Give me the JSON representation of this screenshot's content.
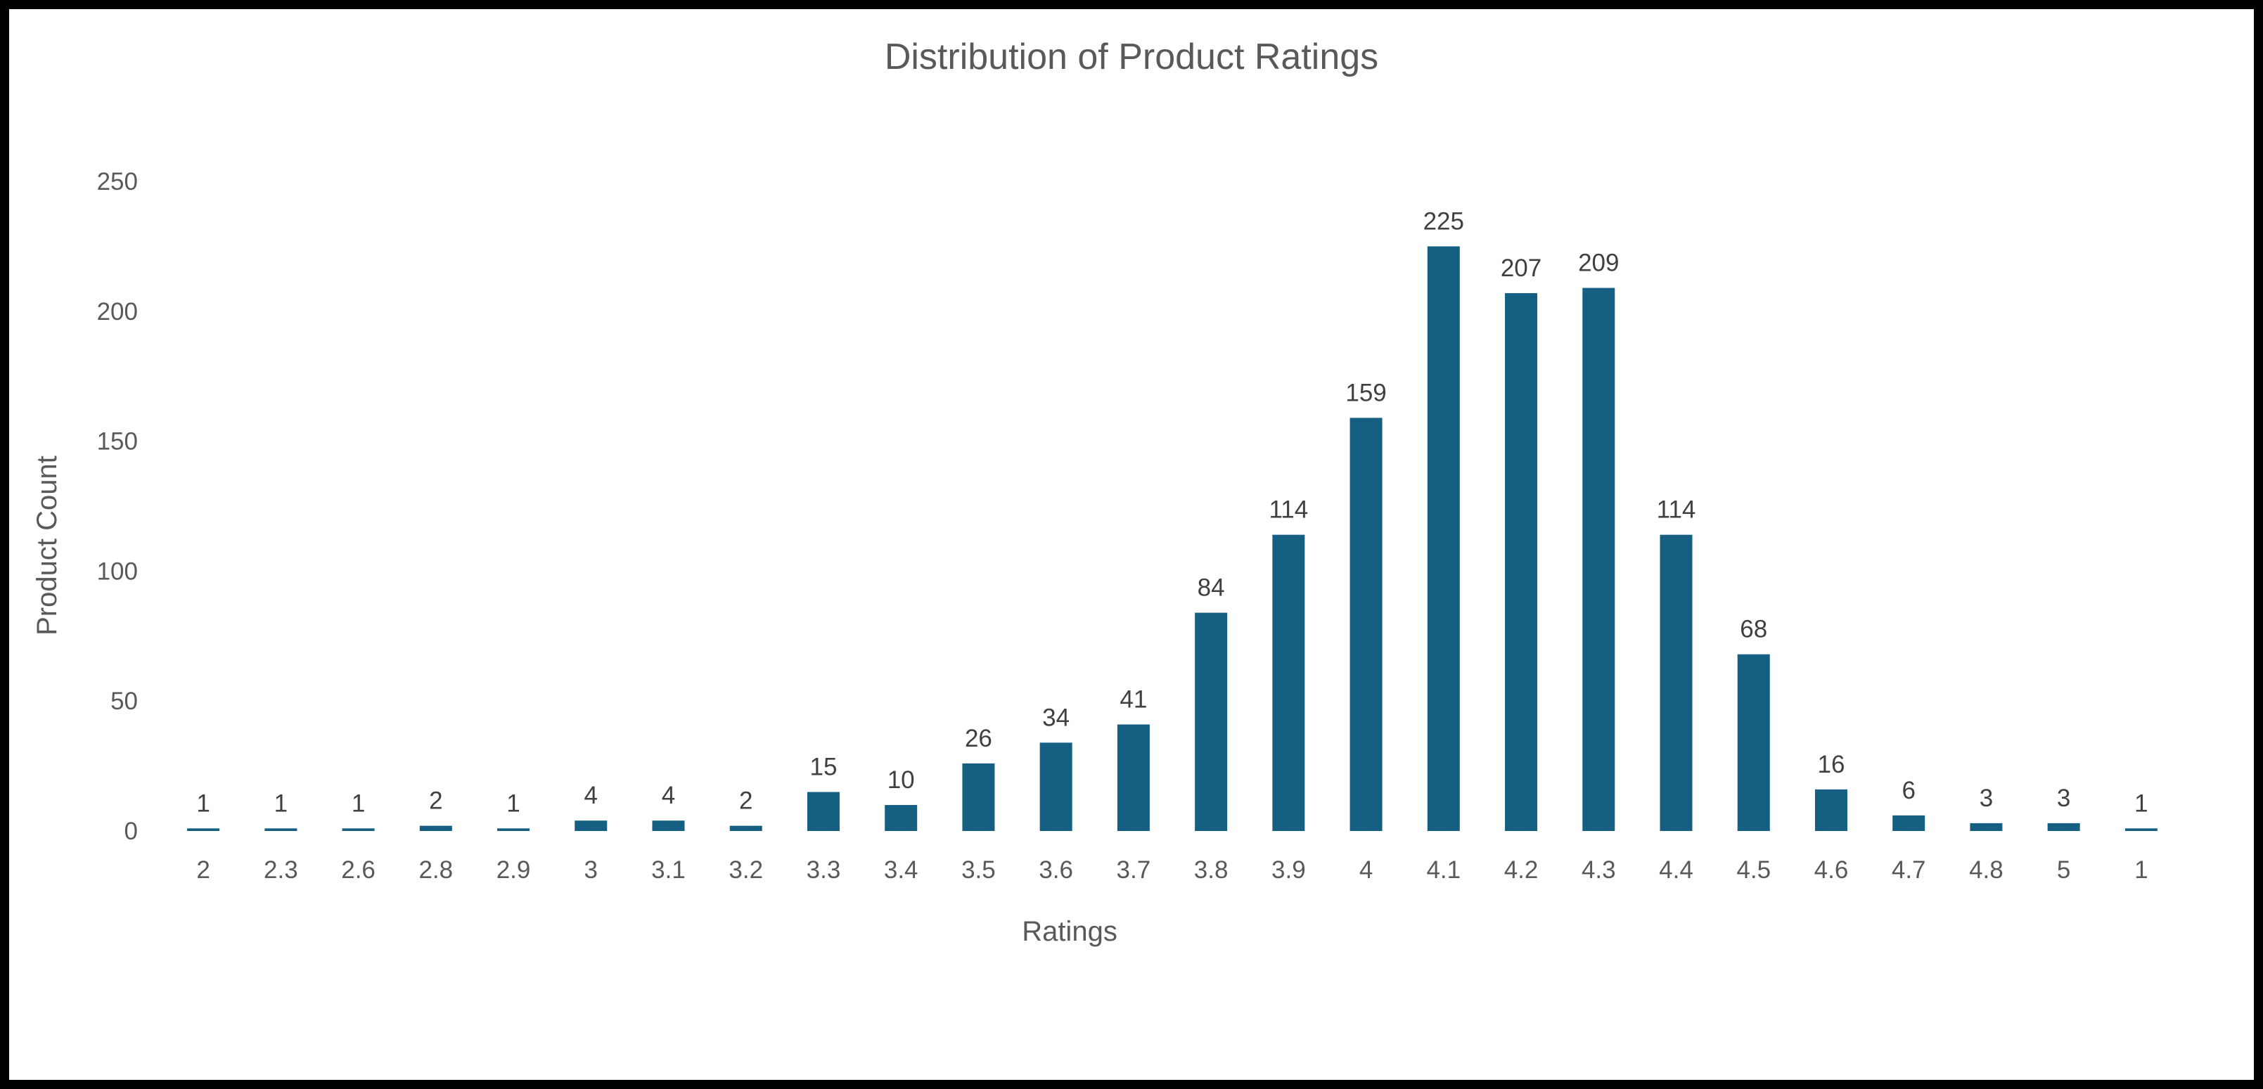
{
  "chart_data": {
    "type": "bar",
    "title": "Distribution of Product Ratings",
    "xlabel": "Ratings",
    "ylabel": "Product Count",
    "categories": [
      "2",
      "2.3",
      "2.6",
      "2.8",
      "2.9",
      "3",
      "3.1",
      "3.2",
      "3.3",
      "3.4",
      "3.5",
      "3.6",
      "3.7",
      "3.8",
      "3.9",
      "4",
      "4.1",
      "4.2",
      "4.3",
      "4.4",
      "4.5",
      "4.6",
      "4.7",
      "4.8",
      "5",
      "1"
    ],
    "values": [
      1,
      1,
      1,
      2,
      1,
      4,
      4,
      2,
      15,
      10,
      26,
      34,
      41,
      84,
      114,
      159,
      225,
      207,
      209,
      114,
      68,
      16,
      6,
      3,
      3,
      1
    ],
    "yticks": [
      0,
      50,
      100,
      150,
      200,
      250
    ],
    "ylim": [
      0,
      250
    ],
    "grid": false,
    "legend": "none",
    "bar_color": "#156082",
    "data_labels": true
  }
}
